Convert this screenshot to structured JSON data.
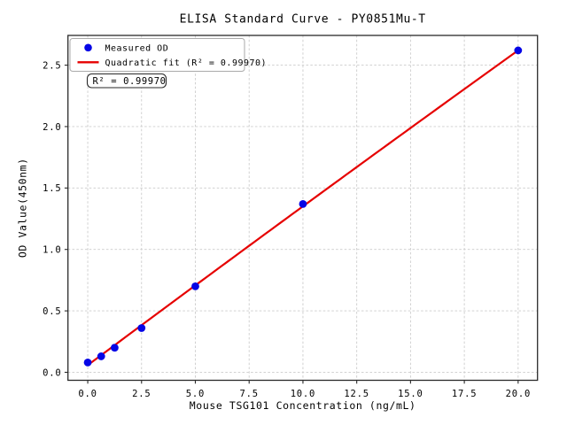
{
  "chart_data": {
    "type": "scatter",
    "title": "ELISA Standard Curve - PY0851Mu-T",
    "xlabel": "Mouse TSG101 Concentration (ng/mL)",
    "ylabel": "OD Value(450nm)",
    "grid": true,
    "legend_position": "upper left",
    "series": [
      {
        "name": "Measured OD",
        "type": "scatter",
        "marker": "circle",
        "color": "#0505e6",
        "points": [
          {
            "x": 0,
            "y": 0.08
          },
          {
            "x": 0.625,
            "y": 0.13
          },
          {
            "x": 1.25,
            "y": 0.2
          },
          {
            "x": 2.5,
            "y": 0.36
          },
          {
            "x": 5,
            "y": 0.7
          },
          {
            "x": 10,
            "y": 1.37
          },
          {
            "x": 20,
            "y": 2.62
          }
        ]
      },
      {
        "name": "Quadratic fit (R² = 0.99970)",
        "type": "line",
        "color": "#e60000",
        "fit": "quadratic",
        "r_squared": 0.9997,
        "coefficients": {
          "a": 0.058,
          "b": 0.1305,
          "c": -0.00012
        },
        "x_range": [
          0,
          20
        ]
      }
    ],
    "x_axis": {
      "lim": [
        -0.92,
        20.9
      ],
      "tick_values": [
        0,
        2.5,
        5,
        7.5,
        10,
        12.5,
        15,
        17.5,
        20
      ],
      "tick_labels": [
        "0.0",
        "2.5",
        "5.0",
        "7.5",
        "10.0",
        "12.5",
        "15.0",
        "17.5",
        "20.0"
      ]
    },
    "y_axis": {
      "lim": [
        -0.065,
        2.742
      ],
      "tick_values": [
        0,
        0.5,
        1.0,
        1.5,
        2.0,
        2.5
      ],
      "tick_labels": [
        "0.0",
        "0.5",
        "1.0",
        "1.5",
        "2.0",
        "2.5"
      ]
    },
    "legend": {
      "items": [
        {
          "label": "Measured OD",
          "marker": "circle",
          "color": "#0505e6"
        },
        {
          "label": "Quadratic fit (R² = 0.99970)",
          "marker": "line",
          "color": "#e60000"
        }
      ]
    },
    "annotation": {
      "text": "R² = 0.99970"
    },
    "colors": {
      "point": "#0505e6",
      "fit_line": "#e60000",
      "grid": "#cccccc",
      "spine": "#2a2a2a",
      "text": "#000000",
      "legend_border": "#aaaaaa",
      "background": "#ffffff"
    }
  }
}
